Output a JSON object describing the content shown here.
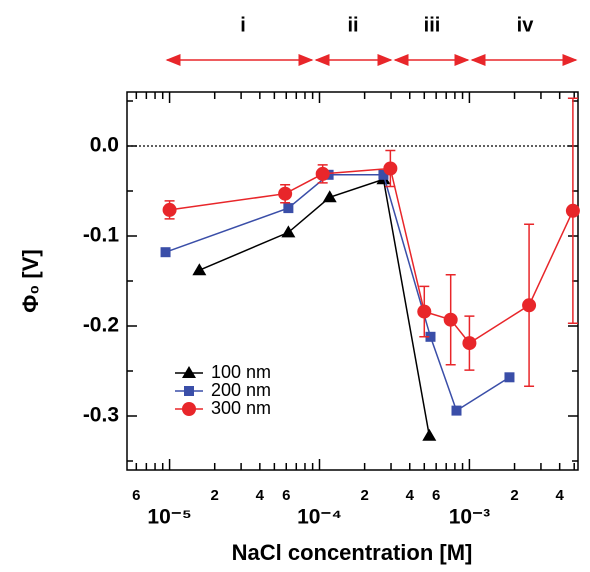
{
  "chart_data": {
    "type": "line",
    "x_label": "NaCl concentration [M]",
    "y_label": "Φ₀ [V]",
    "xscale": "log",
    "xlim": [
      5.2e-06,
      0.0053
    ],
    "ylim": [
      -0.36,
      0.06
    ],
    "xticks": [
      {
        "value": 6e-06,
        "label": "6"
      },
      {
        "value": 1e-05,
        "label": "10⁻⁵"
      },
      {
        "value": 2e-05,
        "label": "2"
      },
      {
        "value": 4e-05,
        "label": "4"
      },
      {
        "value": 6e-05,
        "label": "6"
      },
      {
        "value": 0.0001,
        "label": "10⁻⁴"
      },
      {
        "value": 0.0002,
        "label": "2"
      },
      {
        "value": 0.0004,
        "label": "4"
      },
      {
        "value": 0.0006,
        "label": "6"
      },
      {
        "value": 0.001,
        "label": "10⁻³"
      },
      {
        "value": 0.002,
        "label": "2"
      },
      {
        "value": 0.004,
        "label": "4"
      }
    ],
    "xminor": [
      7e-06,
      8e-06,
      9e-06,
      3e-05,
      5e-05,
      7e-05,
      8e-05,
      9e-05,
      0.0003,
      0.0005,
      0.0007,
      0.0008,
      0.0009,
      0.003,
      0.005
    ],
    "yticks": [
      {
        "value": 0,
        "label": "0.0"
      },
      {
        "value": -0.1,
        "label": "-0.1"
      },
      {
        "value": -0.2,
        "label": "-0.2"
      },
      {
        "value": -0.3,
        "label": "-0.3"
      }
    ],
    "yminor": [
      0.05,
      -0.05,
      -0.15,
      -0.25,
      -0.35
    ],
    "legend": "lower left",
    "regions": [
      "i",
      "ii",
      "iii",
      "iv"
    ],
    "series": [
      {
        "name": "100 nm",
        "color": "#000000",
        "marker": "triangle",
        "x": [
          1.58e-05,
          6.2e-05,
          0.000117,
          0.000267,
          0.00054
        ],
        "values": [
          -0.138,
          -0.096,
          -0.057,
          -0.037,
          -0.322
        ]
      },
      {
        "name": "200 nm",
        "color": "#3a4ea8",
        "marker": "square",
        "x": [
          9.4e-06,
          6.2e-05,
          0.000115,
          0.000267,
          0.00055,
          0.00082,
          0.00185
        ],
        "values": [
          -0.118,
          -0.069,
          -0.032,
          -0.032,
          -0.212,
          -0.294,
          -0.257
        ]
      },
      {
        "name": "300 nm",
        "color": "#e8262a",
        "marker": "circle",
        "x": [
          1e-05,
          5.9e-05,
          0.000105,
          0.000297,
          0.0005,
          0.00075,
          0.001,
          0.0025,
          0.0049
        ],
        "values": [
          -0.071,
          -0.053,
          -0.031,
          -0.025,
          -0.184,
          -0.193,
          -0.219,
          -0.177,
          -0.072
        ],
        "errors": [
          0.01,
          0.01,
          0.01,
          0.02,
          0.028,
          0.05,
          0.03,
          0.09,
          0.125
        ]
      }
    ]
  }
}
